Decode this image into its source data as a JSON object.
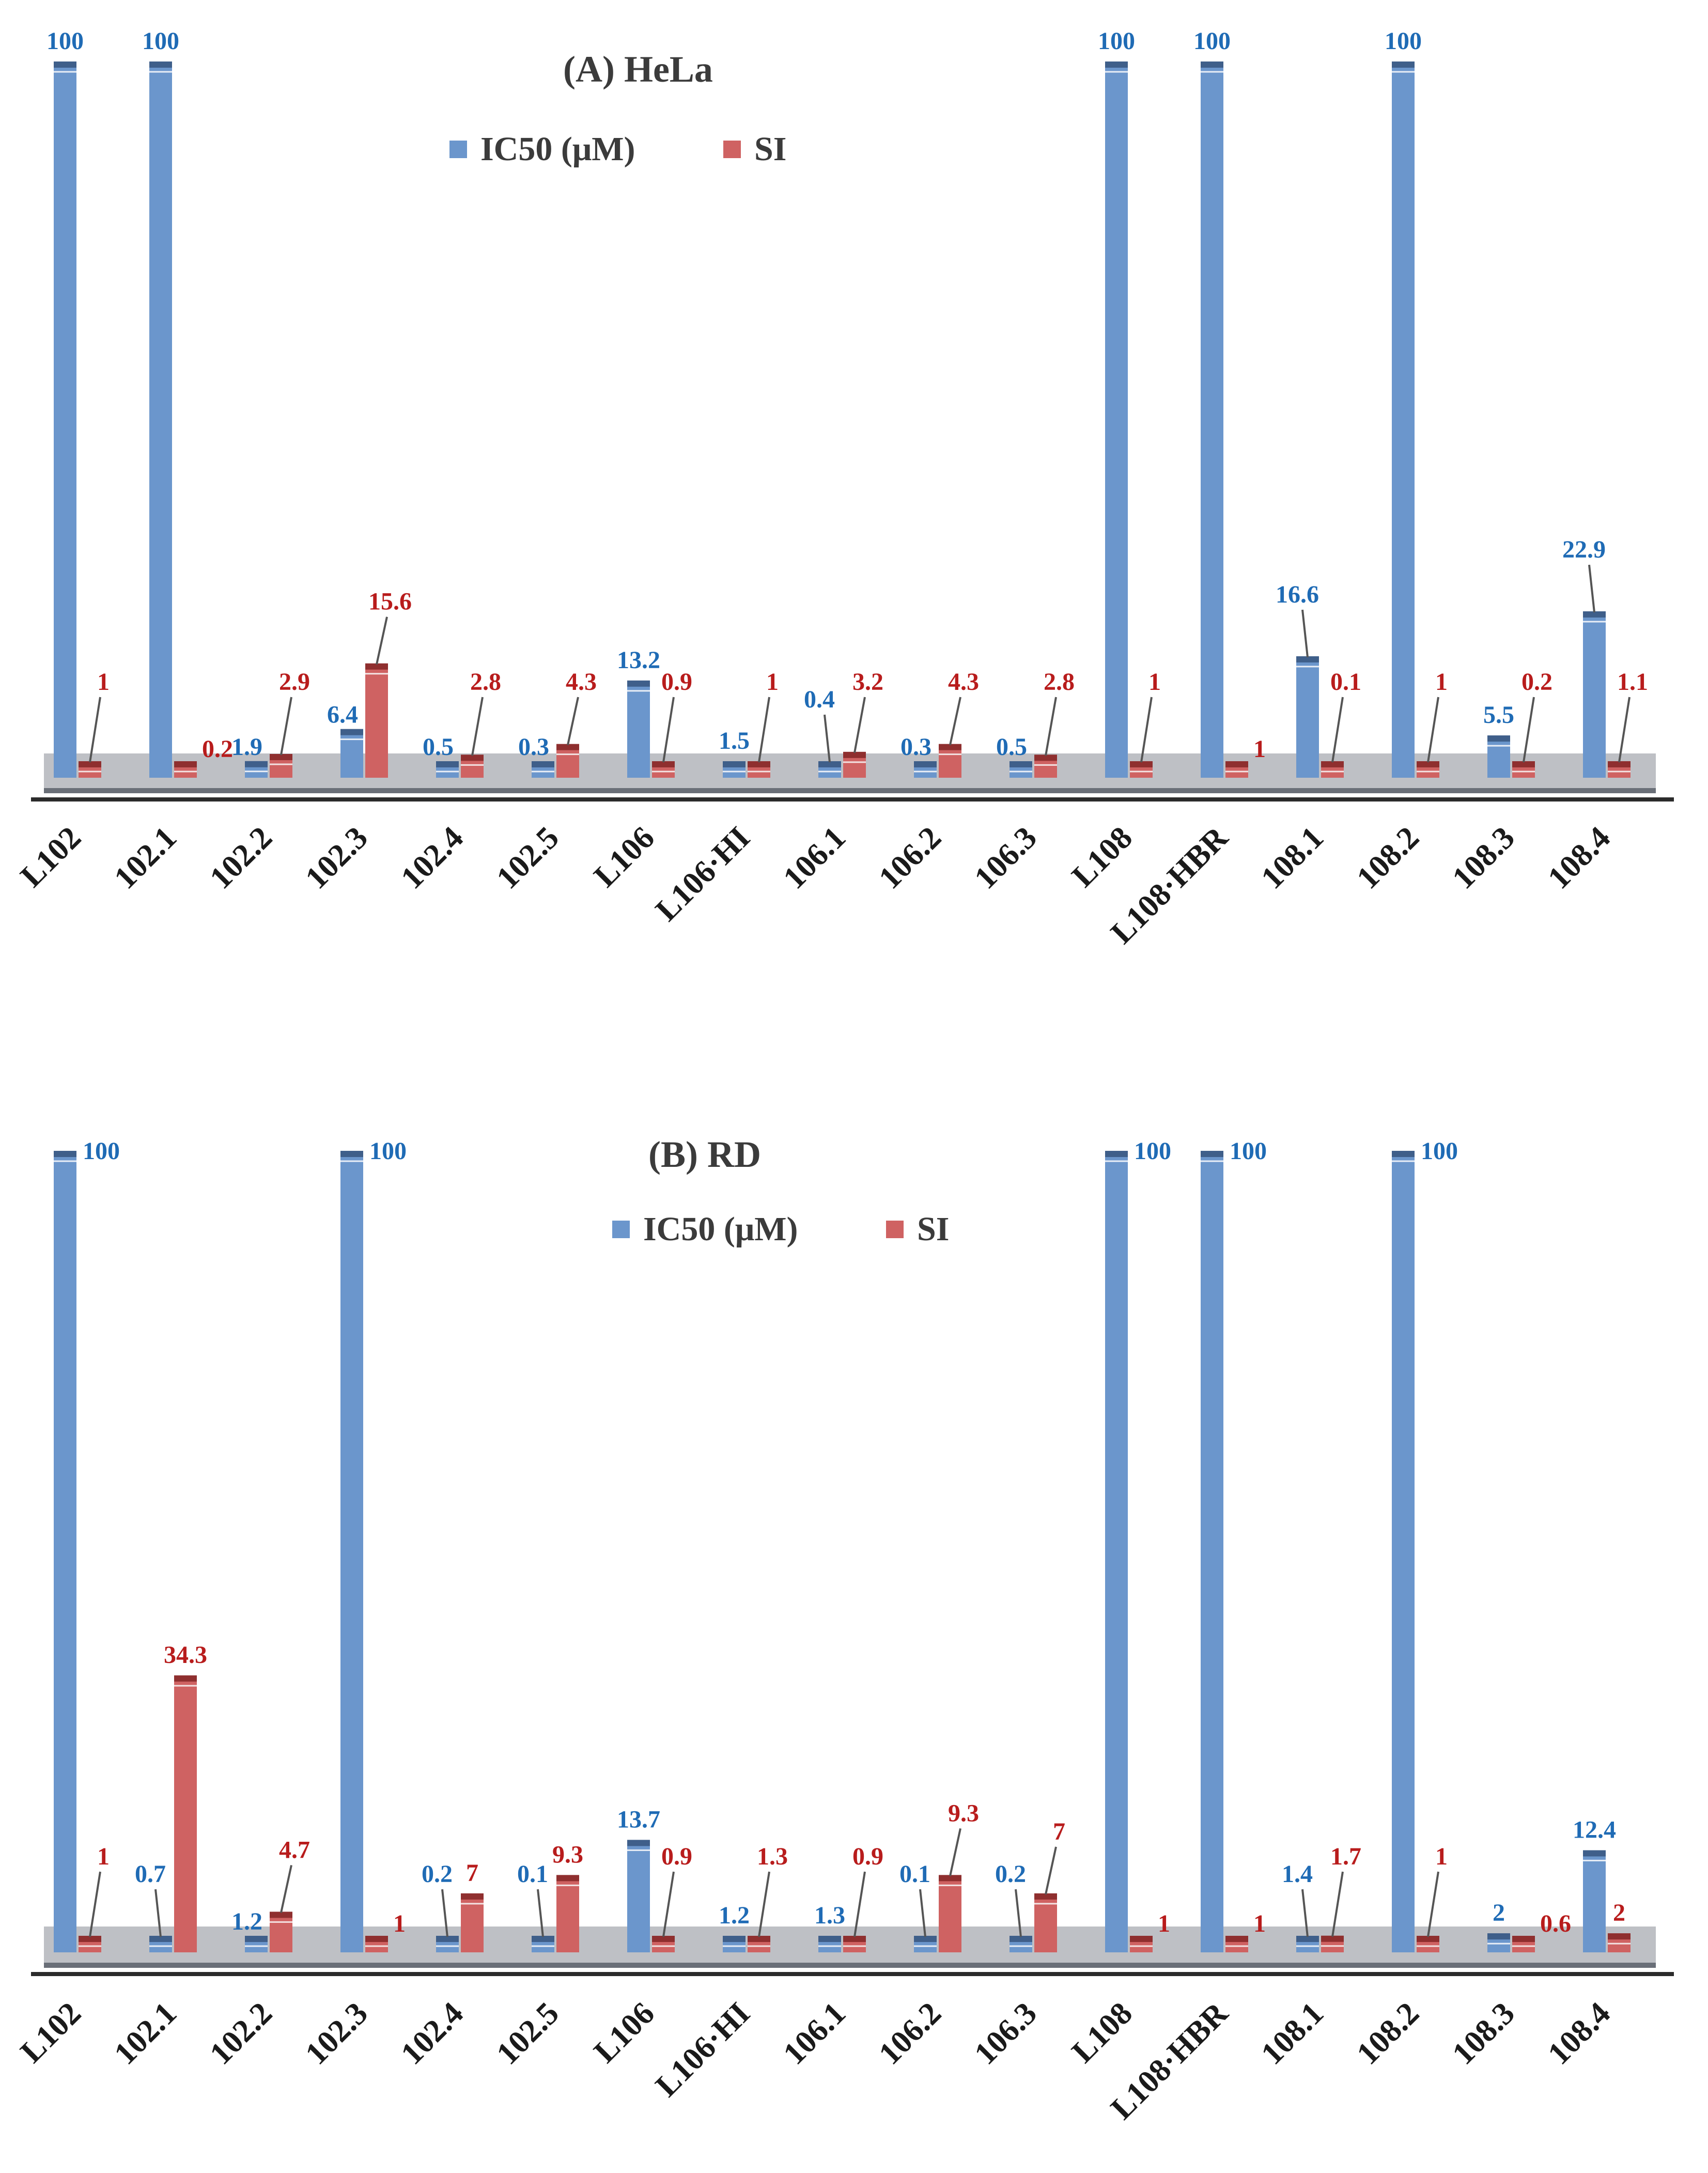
{
  "colors": {
    "ic50": "#6b96cc",
    "ic50_cap": "#3f5f8a",
    "si": "#cf6262",
    "si_cap": "#8f2f2f",
    "ic50_text": "#1f6bb5",
    "si_text": "#b81c1c",
    "floor_band": "#a8abb1",
    "axis": "#2b2b2b"
  },
  "chart_data": [
    {
      "type": "bar",
      "title": "(A)   HeLa",
      "categories": [
        "L102",
        "102.1",
        "102.2",
        "102.3",
        "102.4",
        "102.5",
        "L106",
        "L106·HI",
        "106.1",
        "106.2",
        "106.3",
        "L108",
        "L108·HBR",
        "108.1",
        "108.2",
        "108.3",
        "108.4"
      ],
      "series": [
        {
          "name": "IC50   (μM)",
          "values": [
            100,
            100,
            1.9,
            6.4,
            0.5,
            0.3,
            13.2,
            1.5,
            0.4,
            0.3,
            0.5,
            100,
            100,
            16.6,
            100,
            5.5,
            22.9
          ]
        },
        {
          "name": "SI",
          "values": [
            1,
            0.2,
            2.9,
            15.6,
            2.8,
            4.3,
            0.9,
            1,
            3.2,
            4.3,
            2.8,
            1,
            1,
            0.1,
            1,
            0.2,
            1.1
          ]
        }
      ],
      "ylim": [
        0,
        100
      ],
      "legend": "top-center",
      "grid": false
    },
    {
      "type": "bar",
      "title": "(B)    RD",
      "categories": [
        "L102",
        "102.1",
        "102.2",
        "102.3",
        "102.4",
        "102.5",
        "L106",
        "L106·HI",
        "106.1",
        "106.2",
        "106.3",
        "L108",
        "L108·HBR",
        "108.1",
        "108.2",
        "108.3",
        "108.4"
      ],
      "series": [
        {
          "name": "IC50   (μM)",
          "values": [
            100,
            0.7,
            1.2,
            100,
            0.2,
            0.1,
            13.7,
            1.2,
            1.3,
            0.1,
            0.2,
            100,
            100,
            1.4,
            100,
            2,
            12.4
          ]
        },
        {
          "name": "SI",
          "values": [
            1,
            34.3,
            4.7,
            1,
            7,
            9.3,
            0.9,
            1.3,
            0.9,
            9.3,
            7,
            1,
            1,
            1.7,
            1,
            0.6,
            2
          ]
        }
      ],
      "ylim": [
        0,
        100
      ],
      "legend": "top-center",
      "grid": false
    }
  ]
}
